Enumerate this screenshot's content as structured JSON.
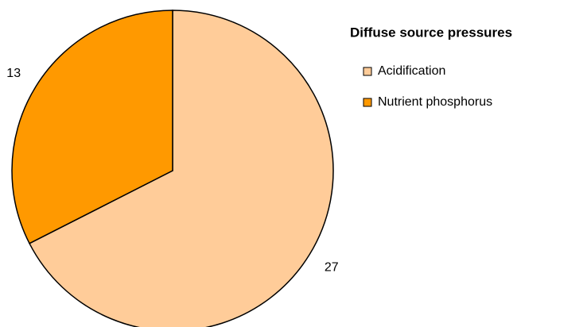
{
  "chart_data": {
    "type": "pie",
    "title": "Diffuse source pressures",
    "categories": [
      "Acidification",
      "Nutrient phosphorus"
    ],
    "values": [
      27,
      13
    ],
    "colors": [
      "#ffcc99",
      "#ff9900"
    ]
  }
}
